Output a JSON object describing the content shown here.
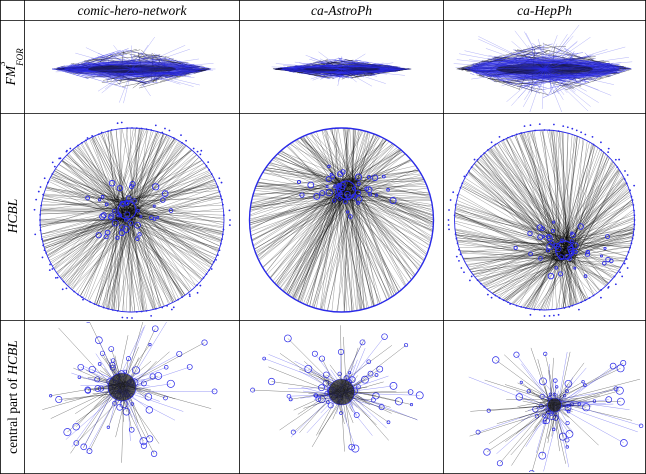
{
  "columns": [
    {
      "name": "comic-hero-network"
    },
    {
      "name": "ca-AstroPh"
    },
    {
      "name": "ca-HepPh"
    }
  ],
  "rows": [
    {
      "label_main": "FM",
      "label_sup": "3",
      "label_sub": "FOR",
      "style": "fm3"
    },
    {
      "label_main": "HCBL",
      "style": "hcbl"
    },
    {
      "label_prefix": "central part of ",
      "label_main": "HCBL",
      "style": "central"
    }
  ],
  "colors": {
    "node_blue": "#2a2ae8",
    "edge_black": "#000000",
    "grid_line": "#000000"
  }
}
